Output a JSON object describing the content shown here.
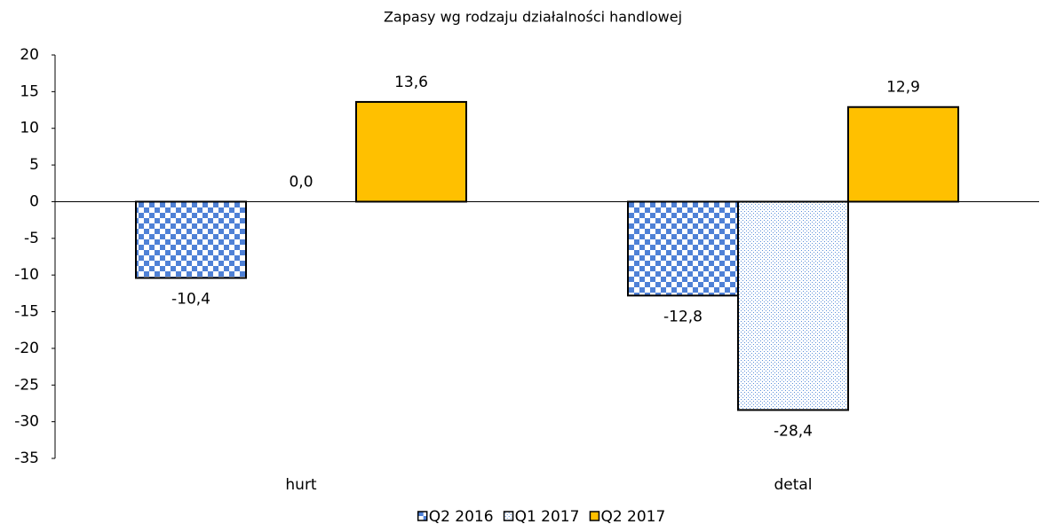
{
  "chart_data": {
    "type": "bar",
    "title": "Zapasy wg rodzaju działalności handlowej",
    "categories": [
      "hurt",
      "detal"
    ],
    "series": [
      {
        "name": "Q2 2016",
        "color": "#4f81d6",
        "pattern": "checker",
        "values": [
          -10.4,
          -12.8
        ],
        "value_labels": [
          "-10,4",
          "-12,8"
        ]
      },
      {
        "name": "Q1 2017",
        "color": "#5b8fd9",
        "pattern": "dots",
        "values": [
          0.0,
          -28.4
        ],
        "value_labels": [
          "0,0",
          "-28,4"
        ]
      },
      {
        "name": "Q2 2017",
        "color": "#ffc000",
        "pattern": "solid",
        "values": [
          13.6,
          12.9
        ],
        "value_labels": [
          "13,6",
          "12,9"
        ]
      }
    ],
    "ylim": [
      -35,
      20
    ],
    "yticks": [
      20,
      15,
      10,
      5,
      0,
      -5,
      -10,
      -15,
      -20,
      -25,
      -30,
      -35
    ],
    "grid": false,
    "legend": "bottom"
  }
}
